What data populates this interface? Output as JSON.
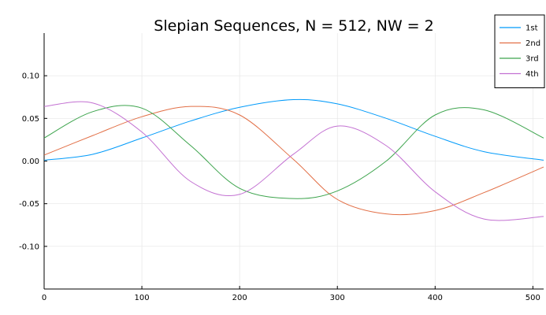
{
  "chart_data": {
    "type": "line",
    "title": "Slepian Sequences, N = 512, NW = 2",
    "xlabel": "",
    "ylabel": "",
    "xlim": [
      0,
      511
    ],
    "ylim": [
      -0.15,
      0.15
    ],
    "xticks": [
      0,
      100,
      200,
      300,
      400,
      500
    ],
    "xtick_labels": [
      "0",
      "100",
      "200",
      "300",
      "400",
      "500"
    ],
    "yticks": [
      -0.1,
      -0.05,
      0.0,
      0.05,
      0.1
    ],
    "ytick_labels": [
      "-0.10",
      "-0.05",
      "0.00",
      "0.05",
      "0.10"
    ],
    "grid": true,
    "legend_position": "top-right",
    "x": [
      0,
      50,
      100,
      150,
      200,
      255,
      300,
      350,
      400,
      450,
      511
    ],
    "series": [
      {
        "name": "1st",
        "color": "#009AFA",
        "values": [
          0.001,
          0.008,
          0.027,
          0.047,
          0.063,
          0.072,
          0.067,
          0.05,
          0.029,
          0.011,
          0.001
        ]
      },
      {
        "name": "2nd",
        "color": "#E26F46",
        "values": [
          0.007,
          0.03,
          0.052,
          0.064,
          0.054,
          0.002,
          -0.045,
          -0.062,
          -0.058,
          -0.037,
          -0.007
        ]
      },
      {
        "name": "3rd",
        "color": "#3DA44D",
        "values": [
          0.027,
          0.058,
          0.062,
          0.018,
          -0.032,
          -0.044,
          -0.035,
          0.0,
          0.054,
          0.06,
          0.027
        ]
      },
      {
        "name": "4th",
        "color": "#C371D2",
        "values": [
          0.064,
          0.068,
          0.034,
          -0.024,
          -0.039,
          0.008,
          0.041,
          0.018,
          -0.036,
          -0.068,
          -0.065
        ]
      }
    ]
  }
}
